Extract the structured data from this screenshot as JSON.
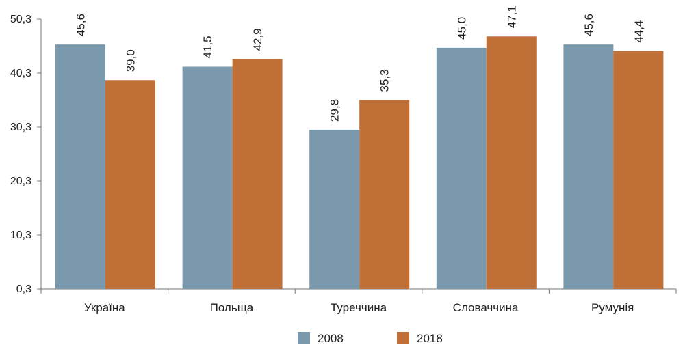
{
  "chart_data": {
    "type": "bar",
    "categories": [
      "Україна",
      "Польща",
      "Туреччина",
      "Словаччина",
      "Румунія"
    ],
    "series": [
      {
        "name": "2008",
        "values": [
          45.6,
          41.5,
          29.8,
          45.0,
          45.6
        ],
        "color": "#7a99ac",
        "value_labels": [
          "45,6",
          "41,5",
          "29,8",
          "45,0",
          "45,6"
        ]
      },
      {
        "name": "2018",
        "values": [
          39.0,
          42.9,
          35.3,
          47.1,
          44.4
        ],
        "color": "#c07036",
        "value_labels": [
          "39,0",
          "42,9",
          "35,3",
          "47,1",
          "44,4"
        ]
      }
    ],
    "yticks": [
      0.3,
      10.3,
      20.3,
      30.3,
      40.3,
      50.3
    ],
    "ytick_labels": [
      "0,3",
      "10,3",
      "20,3",
      "30,3",
      "40,3",
      "50,3"
    ],
    "ylim": [
      0.3,
      50.3
    ],
    "title": "",
    "xlabel": "",
    "ylabel": "",
    "grid": false,
    "legend": "bottom-center"
  }
}
